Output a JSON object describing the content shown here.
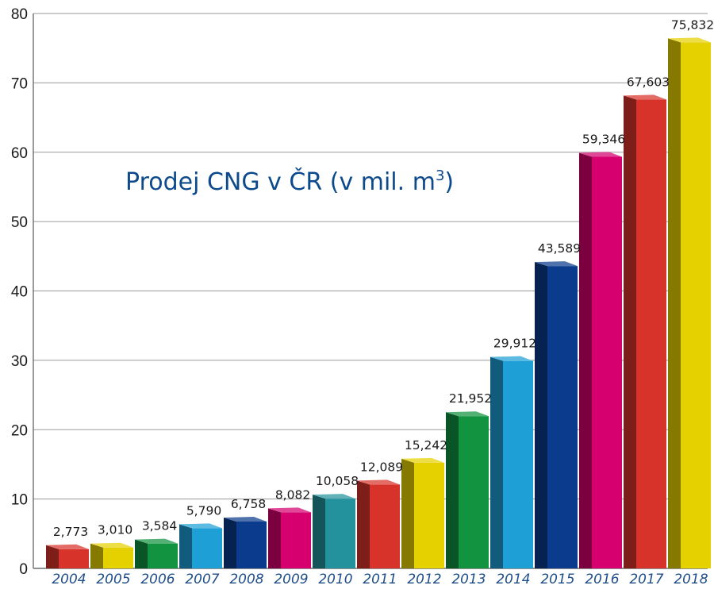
{
  "chart_data": {
    "type": "bar",
    "title": "Prodej CNG v ČR (v mil. m",
    "title_superscript": "3",
    "title_suffix": ")",
    "xlabel": "",
    "ylabel": "",
    "ylim": [
      0,
      80
    ],
    "yticks": [
      "0",
      "10",
      "20",
      "30",
      "40",
      "50",
      "60",
      "70",
      "80"
    ],
    "grid": true,
    "categories": [
      "2004",
      "2005",
      "2006",
      "2007",
      "2008",
      "2009",
      "2010",
      "2011",
      "2012",
      "2013",
      "2014",
      "2015",
      "2016",
      "2017",
      "2018"
    ],
    "values": [
      2.773,
      3.01,
      3.584,
      5.79,
      6.758,
      8.082,
      10.058,
      12.089,
      15.242,
      21.952,
      29.912,
      43.589,
      59.346,
      67.603,
      75.832
    ],
    "value_labels": [
      "2,773",
      "3,010",
      "3,584",
      "5,790",
      "6,758",
      "8,082",
      "10,058",
      "12,089",
      "15,242",
      "21,952",
      "29,912",
      "43,589",
      "59,346",
      "67,603",
      "75,832"
    ],
    "colors": [
      "#d8332b",
      "#e6d100",
      "#12933f",
      "#1e9fd6",
      "#0b3b8c",
      "#d6006f",
      "#23929c",
      "#d8332b",
      "#e6d100",
      "#12933f",
      "#1e9fd6",
      "#0b3b8c",
      "#d6006f",
      "#d8332b",
      "#e6d100"
    ]
  }
}
